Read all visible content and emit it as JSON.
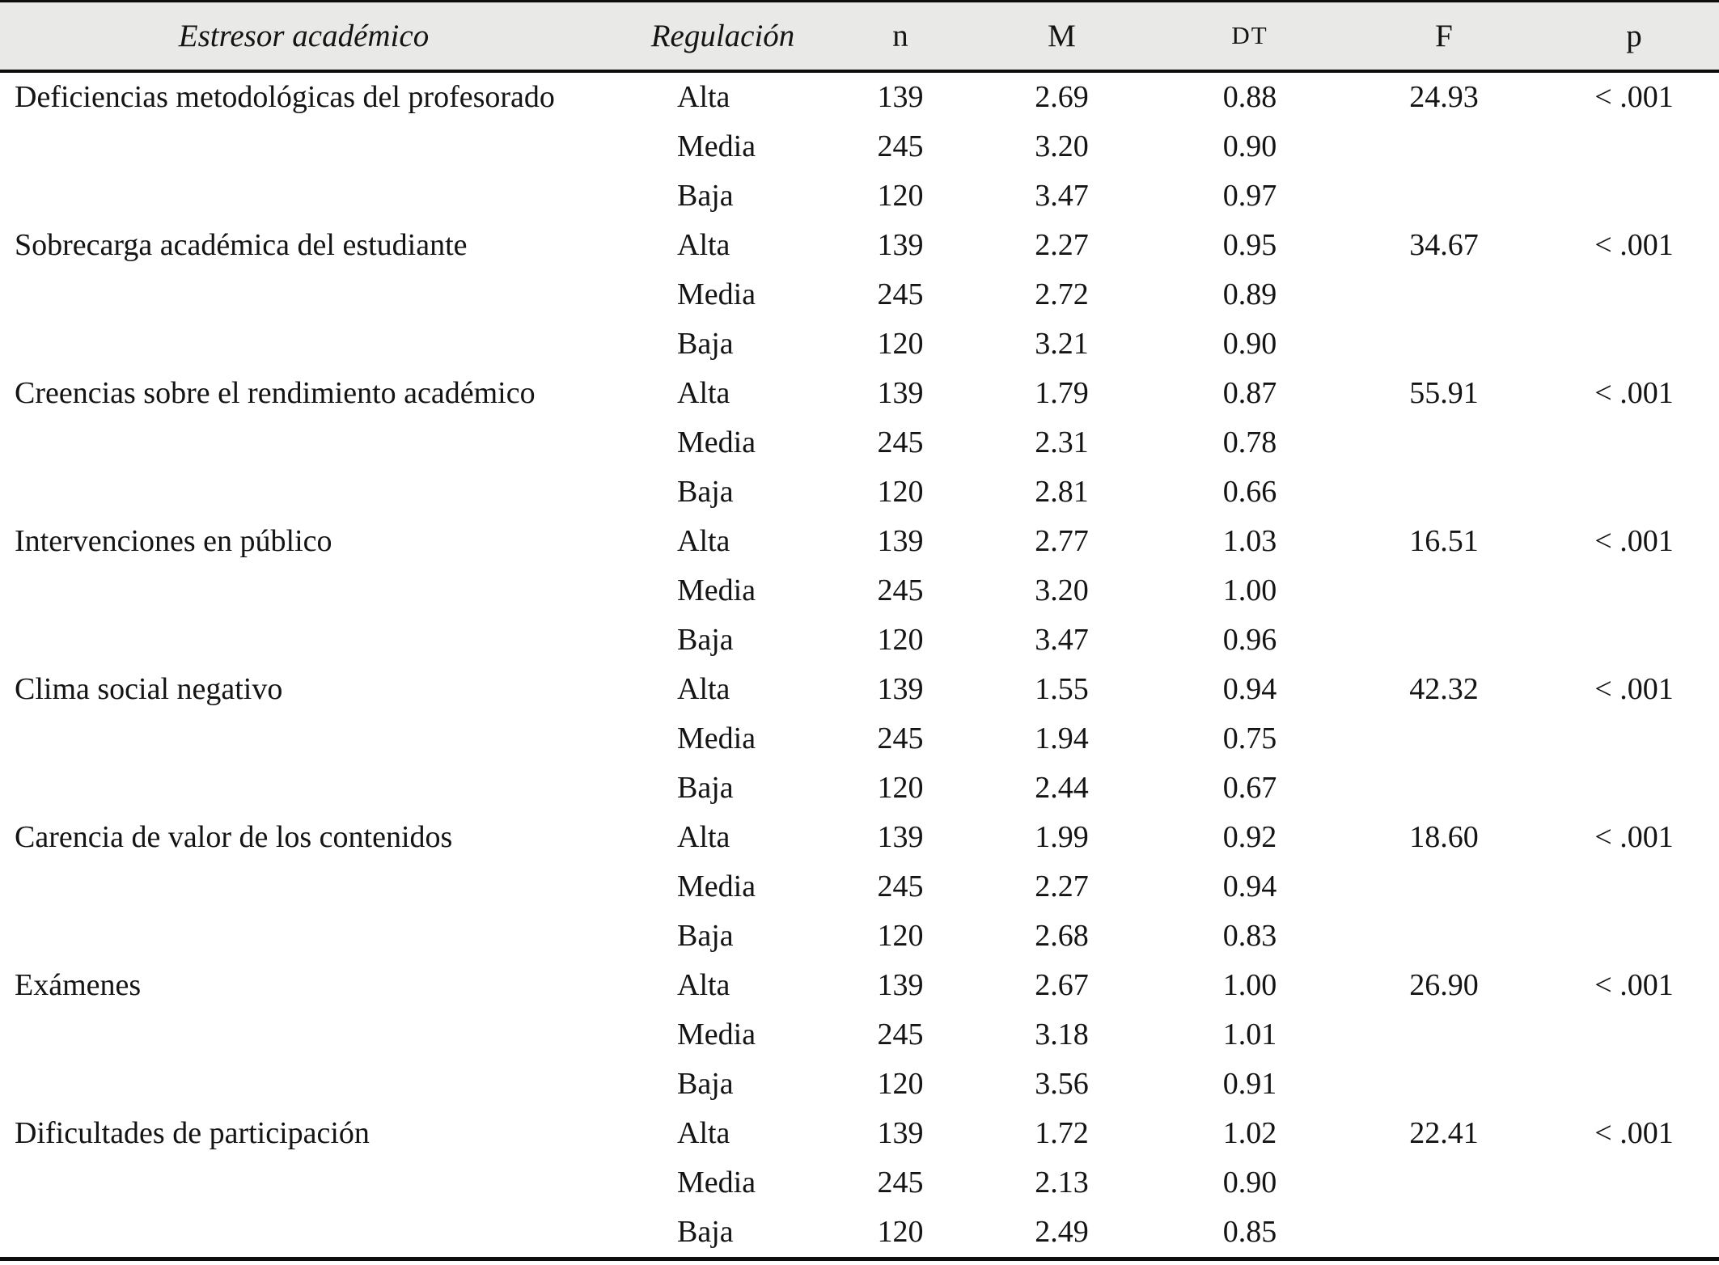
{
  "table": {
    "headers": {
      "stressor": "Estresor académico",
      "regulation": "Regulación",
      "n": "n",
      "mean": "M",
      "sd": "DT",
      "f": "F",
      "p": "p"
    },
    "groups": [
      {
        "stressor": "Deficiencias metodológicas del profesorado",
        "f": "24.93",
        "p": "< .001",
        "rows": [
          {
            "regulation": "Alta",
            "n": "139",
            "mean": "2.69",
            "sd": "0.88"
          },
          {
            "regulation": "Media",
            "n": "245",
            "mean": "3.20",
            "sd": "0.90"
          },
          {
            "regulation": "Baja",
            "n": "120",
            "mean": "3.47",
            "sd": "0.97"
          }
        ]
      },
      {
        "stressor": "Sobrecarga académica del estudiante",
        "f": "34.67",
        "p": "< .001",
        "rows": [
          {
            "regulation": "Alta",
            "n": "139",
            "mean": "2.27",
            "sd": "0.95"
          },
          {
            "regulation": "Media",
            "n": "245",
            "mean": "2.72",
            "sd": "0.89"
          },
          {
            "regulation": "Baja",
            "n": "120",
            "mean": "3.21",
            "sd": "0.90"
          }
        ]
      },
      {
        "stressor": "Creencias sobre el rendimiento académico",
        "f": "55.91",
        "p": "< .001",
        "rows": [
          {
            "regulation": "Alta",
            "n": "139",
            "mean": "1.79",
            "sd": "0.87"
          },
          {
            "regulation": "Media",
            "n": "245",
            "mean": "2.31",
            "sd": "0.78"
          },
          {
            "regulation": "Baja",
            "n": "120",
            "mean": "2.81",
            "sd": "0.66"
          }
        ]
      },
      {
        "stressor": "Intervenciones en público",
        "f": "16.51",
        "p": "< .001",
        "rows": [
          {
            "regulation": "Alta",
            "n": "139",
            "mean": "2.77",
            "sd": "1.03"
          },
          {
            "regulation": "Media",
            "n": "245",
            "mean": "3.20",
            "sd": "1.00"
          },
          {
            "regulation": "Baja",
            "n": "120",
            "mean": "3.47",
            "sd": "0.96"
          }
        ]
      },
      {
        "stressor": "Clima social negativo",
        "f": "42.32",
        "p": "< .001",
        "rows": [
          {
            "regulation": "Alta",
            "n": "139",
            "mean": "1.55",
            "sd": "0.94"
          },
          {
            "regulation": "Media",
            "n": "245",
            "mean": "1.94",
            "sd": "0.75"
          },
          {
            "regulation": "Baja",
            "n": "120",
            "mean": "2.44",
            "sd": "0.67"
          }
        ]
      },
      {
        "stressor": "Carencia de valor de los contenidos",
        "f": "18.60",
        "p": "< .001",
        "rows": [
          {
            "regulation": "Alta",
            "n": "139",
            "mean": "1.99",
            "sd": "0.92"
          },
          {
            "regulation": "Media",
            "n": "245",
            "mean": "2.27",
            "sd": "0.94"
          },
          {
            "regulation": "Baja",
            "n": "120",
            "mean": "2.68",
            "sd": "0.83"
          }
        ]
      },
      {
        "stressor": "Exámenes",
        "f": "26.90",
        "p": "< .001",
        "rows": [
          {
            "regulation": "Alta",
            "n": "139",
            "mean": "2.67",
            "sd": "1.00"
          },
          {
            "regulation": "Media",
            "n": "245",
            "mean": "3.18",
            "sd": "1.01"
          },
          {
            "regulation": "Baja",
            "n": "120",
            "mean": "3.56",
            "sd": "0.91"
          }
        ]
      },
      {
        "stressor": "Dificultades de participación",
        "f": "22.41",
        "p": "< .001",
        "rows": [
          {
            "regulation": "Alta",
            "n": "139",
            "mean": "1.72",
            "sd": "1.02"
          },
          {
            "regulation": "Media",
            "n": "245",
            "mean": "2.13",
            "sd": "0.90"
          },
          {
            "regulation": "Baja",
            "n": "120",
            "mean": "2.49",
            "sd": "0.85"
          }
        ]
      }
    ]
  },
  "colors": {
    "header_background": "#e9e9e7",
    "rule": "#0d0d0d",
    "text": "#141414"
  }
}
